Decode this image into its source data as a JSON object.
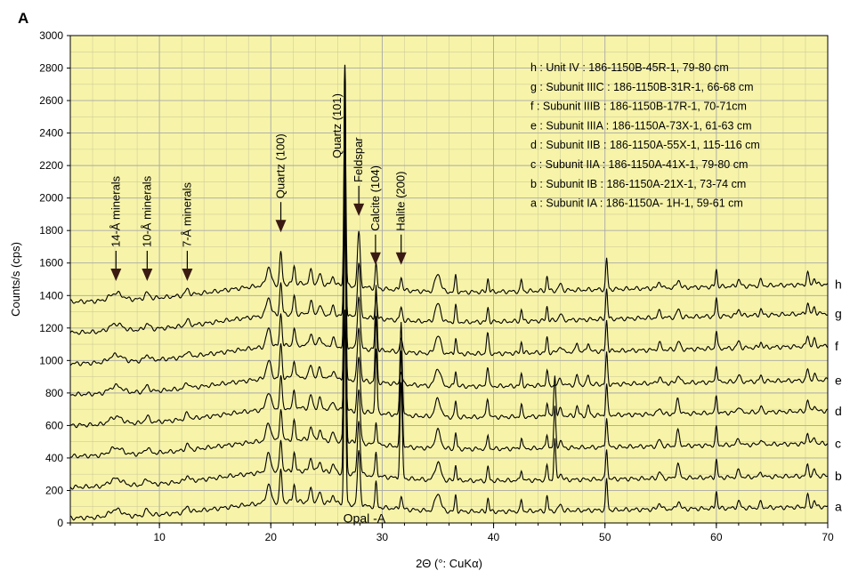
{
  "chart_data": {
    "type": "line",
    "panel_label": "A",
    "xlabel": "2Θ (°: CuKα)",
    "ylabel": "Counts/s (cps)",
    "xlim": [
      2,
      70
    ],
    "ylim": [
      0,
      3000
    ],
    "x_ticks": [
      10,
      20,
      30,
      40,
      50,
      60,
      70
    ],
    "y_ticks": [
      0,
      200,
      400,
      600,
      800,
      1000,
      1200,
      1400,
      1600,
      1800,
      2000,
      2200,
      2400,
      2600,
      2800,
      3000
    ],
    "x_minor_step": 2,
    "y_minor_step": 100,
    "grid": true,
    "plot_background": "#f7f4a9",
    "grid_color": "#aaaaaa",
    "trace_color": "#000000",
    "legend_placement": "top-right",
    "legend": [
      "h : Unit IV :    186-1150B-45R-1, 79-80 cm",
      "g : Subunit IIIC :  186-1150B-31R-1, 66-68 cm",
      "f : Subunit IIIB :  186-1150B-17R-1, 70-71cm",
      "e : Subunit IIIA :  186-1150A-73X-1, 61-63 cm",
      "d : Subunit IIB :   186-1150A-55X-1, 115-116 cm",
      "c : Subunit IIA :   186-1150A-41X-1, 79-80 cm",
      "b : Subunit IB :    186-1150A-21X-1, 73-74 cm",
      "a : Subunit IA :    186-1150A- 1H-1, 59-61 cm"
    ],
    "series": [
      {
        "name": "a",
        "offset": 0,
        "end_level": 100,
        "amp": 1.0
      },
      {
        "name": "b",
        "offset": 190,
        "end_level": 290,
        "amp": 1.0
      },
      {
        "name": "c",
        "offset": 380,
        "end_level": 490,
        "amp": 1.0
      },
      {
        "name": "d",
        "offset": 570,
        "end_level": 690,
        "amp": 1.0
      },
      {
        "name": "e",
        "offset": 760,
        "end_level": 880,
        "amp": 1.0
      },
      {
        "name": "f",
        "offset": 950,
        "end_level": 1090,
        "amp": 1.0
      },
      {
        "name": "g",
        "offset": 1140,
        "end_level": 1290,
        "amp": 1.0
      },
      {
        "name": "h",
        "offset": 1330,
        "end_level": 1470,
        "amp": 1.0
      }
    ],
    "annotations": [
      {
        "text": "14-Å minerals",
        "x": 6.1,
        "arrow_tip_y": 1500
      },
      {
        "text": "10-Å minerals",
        "x": 8.9,
        "arrow_tip_y": 1500
      },
      {
        "text": "7-Å minerals",
        "x": 12.5,
        "arrow_tip_y": 1500
      },
      {
        "text": "Quartz (100)",
        "x": 20.9,
        "arrow_tip_y": 1800
      },
      {
        "text": "Quartz (101)",
        "x": 26.6,
        "arrow_tip_y": null
      },
      {
        "text": "Feldspar",
        "x": 27.9,
        "arrow_tip_y": 1900
      },
      {
        "text": "Calcite (104)",
        "x": 29.4,
        "arrow_tip_y": 1600
      },
      {
        "text": "Halite (200)",
        "x": 31.7,
        "arrow_tip_y": 1600
      }
    ],
    "inline_label": {
      "text": "Opal -A",
      "x": 28.4,
      "y": 100
    }
  }
}
